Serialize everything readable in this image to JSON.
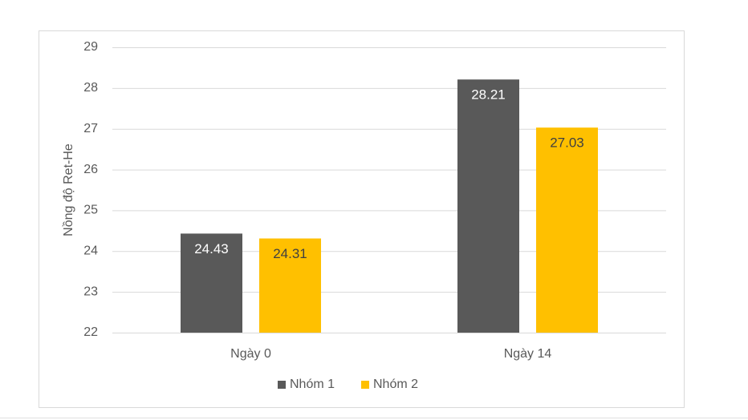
{
  "chart_data": {
    "type": "bar",
    "y_label": "Nồng độ Ret-He",
    "categories": [
      "Ngày 0",
      "Ngày 14"
    ],
    "series": [
      {
        "name": "Nhóm 1",
        "color": "#595959",
        "values": [
          24.43,
          28.21
        ]
      },
      {
        "name": "Nhóm 2",
        "color": "#ffc000",
        "values": [
          24.31,
          27.03
        ]
      }
    ],
    "ylim": [
      22,
      29
    ],
    "yticks": [
      22,
      23,
      24,
      25,
      26,
      27,
      28,
      29
    ],
    "grid": true,
    "legend": "bottom"
  }
}
